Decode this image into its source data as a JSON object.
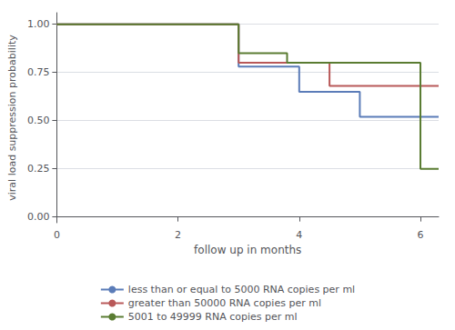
{
  "chart_data": {
    "type": "line",
    "xlabel": "follow up in months",
    "ylabel": "viral load suppression probability",
    "xlim": [
      0,
      6.3
    ],
    "ylim": [
      -0.03,
      1.06
    ],
    "xticks": [
      0,
      2,
      4,
      6
    ],
    "yticks": [
      {
        "value": 0.0,
        "label": "0.00"
      },
      {
        "value": 0.25,
        "label": "0.25"
      },
      {
        "value": 0.5,
        "label": "0.50"
      },
      {
        "value": 0.75,
        "label": "0.75"
      },
      {
        "value": 1.0,
        "label": "1.00"
      }
    ],
    "grid": true,
    "legend": "bottom",
    "marker": "none",
    "series": [
      {
        "name": "less than or equal to 5000 RNA copies per ml",
        "color": "#5b7cb8",
        "x": [
          0,
          3.0,
          3.0,
          4.0,
          4.0,
          5.0,
          5.0,
          6.3
        ],
        "values": [
          1.0,
          1.0,
          0.78,
          0.78,
          0.65,
          0.65,
          0.52,
          0.52
        ]
      },
      {
        "name": "greater than 50000 RNA copies per ml",
        "color": "#b85858",
        "x": [
          0,
          3.0,
          3.0,
          4.5,
          4.5,
          6.3
        ],
        "values": [
          1.0,
          1.0,
          0.8,
          0.8,
          0.68,
          0.68
        ]
      },
      {
        "name": "5001 to 49999 RNA copies per ml",
        "color": "#5a7c32",
        "x": [
          0,
          3.0,
          3.0,
          3.8,
          3.8,
          5.5,
          5.5,
          6.0,
          6.0,
          6.3
        ],
        "values": [
          1.0,
          1.0,
          0.85,
          0.85,
          0.8,
          0.8,
          0.8,
          0.8,
          0.25,
          0.25
        ]
      }
    ]
  }
}
